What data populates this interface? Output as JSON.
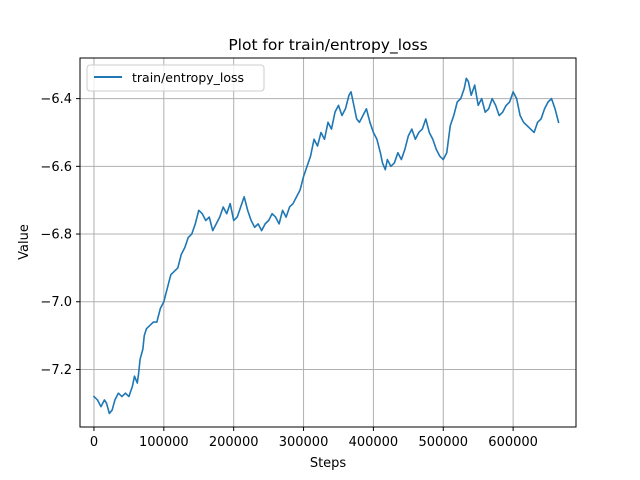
{
  "chart_data": {
    "type": "line",
    "title": "Plot for train/entropy_loss",
    "xlabel": "Steps",
    "ylabel": "Value",
    "xlim": [
      -20000,
      690000
    ],
    "ylim": [
      -7.37,
      -6.28
    ],
    "x_ticks": [
      0,
      100000,
      200000,
      300000,
      400000,
      500000,
      600000
    ],
    "x_tick_labels": [
      "0",
      "100000",
      "200000",
      "300000",
      "400000",
      "500000",
      "600000"
    ],
    "y_ticks": [
      -7.2,
      -7.0,
      -6.8,
      -6.6,
      -6.4
    ],
    "y_tick_labels": [
      "−7.2",
      "−7.0",
      "−6.8",
      "−6.6",
      "−6.4"
    ],
    "grid": true,
    "legend_position": "upper-left",
    "series": [
      {
        "name": "train/entropy_loss",
        "color": "#1f77b4",
        "points": [
          [
            0,
            -7.28
          ],
          [
            5000,
            -7.29
          ],
          [
            10000,
            -7.31
          ],
          [
            15000,
            -7.29
          ],
          [
            18000,
            -7.3
          ],
          [
            22000,
            -7.33
          ],
          [
            26000,
            -7.32
          ],
          [
            30000,
            -7.29
          ],
          [
            35000,
            -7.27
          ],
          [
            40000,
            -7.28
          ],
          [
            45000,
            -7.27
          ],
          [
            50000,
            -7.28
          ],
          [
            55000,
            -7.25
          ],
          [
            58000,
            -7.22
          ],
          [
            62000,
            -7.24
          ],
          [
            64000,
            -7.21
          ],
          [
            66000,
            -7.17
          ],
          [
            70000,
            -7.14
          ],
          [
            72000,
            -7.1
          ],
          [
            75000,
            -7.08
          ],
          [
            80000,
            -7.07
          ],
          [
            85000,
            -7.06
          ],
          [
            90000,
            -7.06
          ],
          [
            95000,
            -7.02
          ],
          [
            100000,
            -7.0
          ],
          [
            105000,
            -6.96
          ],
          [
            110000,
            -6.92
          ],
          [
            115000,
            -6.91
          ],
          [
            120000,
            -6.9
          ],
          [
            125000,
            -6.86
          ],
          [
            130000,
            -6.84
          ],
          [
            135000,
            -6.81
          ],
          [
            140000,
            -6.8
          ],
          [
            145000,
            -6.77
          ],
          [
            150000,
            -6.73
          ],
          [
            155000,
            -6.74
          ],
          [
            160000,
            -6.76
          ],
          [
            165000,
            -6.75
          ],
          [
            170000,
            -6.79
          ],
          [
            175000,
            -6.77
          ],
          [
            180000,
            -6.75
          ],
          [
            185000,
            -6.72
          ],
          [
            190000,
            -6.74
          ],
          [
            195000,
            -6.71
          ],
          [
            200000,
            -6.76
          ],
          [
            205000,
            -6.75
          ],
          [
            210000,
            -6.72
          ],
          [
            215000,
            -6.69
          ],
          [
            220000,
            -6.73
          ],
          [
            225000,
            -6.76
          ],
          [
            230000,
            -6.78
          ],
          [
            235000,
            -6.77
          ],
          [
            240000,
            -6.79
          ],
          [
            245000,
            -6.77
          ],
          [
            250000,
            -6.76
          ],
          [
            255000,
            -6.74
          ],
          [
            260000,
            -6.75
          ],
          [
            265000,
            -6.77
          ],
          [
            270000,
            -6.73
          ],
          [
            275000,
            -6.75
          ],
          [
            280000,
            -6.72
          ],
          [
            285000,
            -6.71
          ],
          [
            290000,
            -6.69
          ],
          [
            295000,
            -6.67
          ],
          [
            300000,
            -6.63
          ],
          [
            305000,
            -6.6
          ],
          [
            310000,
            -6.57
          ],
          [
            315000,
            -6.52
          ],
          [
            320000,
            -6.54
          ],
          [
            325000,
            -6.5
          ],
          [
            330000,
            -6.52
          ],
          [
            335000,
            -6.47
          ],
          [
            340000,
            -6.49
          ],
          [
            345000,
            -6.44
          ],
          [
            350000,
            -6.42
          ],
          [
            355000,
            -6.45
          ],
          [
            360000,
            -6.43
          ],
          [
            365000,
            -6.39
          ],
          [
            368000,
            -6.38
          ],
          [
            372000,
            -6.42
          ],
          [
            376000,
            -6.46
          ],
          [
            380000,
            -6.47
          ],
          [
            385000,
            -6.45
          ],
          [
            390000,
            -6.43
          ],
          [
            395000,
            -6.47
          ],
          [
            400000,
            -6.5
          ],
          [
            405000,
            -6.52
          ],
          [
            410000,
            -6.56
          ],
          [
            413000,
            -6.59
          ],
          [
            417000,
            -6.61
          ],
          [
            420000,
            -6.58
          ],
          [
            425000,
            -6.6
          ],
          [
            430000,
            -6.59
          ],
          [
            435000,
            -6.56
          ],
          [
            440000,
            -6.58
          ],
          [
            445000,
            -6.55
          ],
          [
            450000,
            -6.51
          ],
          [
            455000,
            -6.49
          ],
          [
            460000,
            -6.52
          ],
          [
            465000,
            -6.5
          ],
          [
            470000,
            -6.49
          ],
          [
            475000,
            -6.46
          ],
          [
            480000,
            -6.5
          ],
          [
            485000,
            -6.52
          ],
          [
            490000,
            -6.55
          ],
          [
            495000,
            -6.57
          ],
          [
            500000,
            -6.58
          ],
          [
            505000,
            -6.56
          ],
          [
            510000,
            -6.48
          ],
          [
            515000,
            -6.45
          ],
          [
            520000,
            -6.41
          ],
          [
            525000,
            -6.4
          ],
          [
            530000,
            -6.37
          ],
          [
            533000,
            -6.34
          ],
          [
            536000,
            -6.35
          ],
          [
            540000,
            -6.39
          ],
          [
            545000,
            -6.36
          ],
          [
            550000,
            -6.42
          ],
          [
            555000,
            -6.4
          ],
          [
            560000,
            -6.44
          ],
          [
            565000,
            -6.43
          ],
          [
            570000,
            -6.4
          ],
          [
            575000,
            -6.42
          ],
          [
            580000,
            -6.45
          ],
          [
            585000,
            -6.44
          ],
          [
            590000,
            -6.42
          ],
          [
            595000,
            -6.41
          ],
          [
            600000,
            -6.38
          ],
          [
            605000,
            -6.4
          ],
          [
            610000,
            -6.45
          ],
          [
            615000,
            -6.47
          ],
          [
            620000,
            -6.48
          ],
          [
            625000,
            -6.49
          ],
          [
            630000,
            -6.5
          ],
          [
            635000,
            -6.47
          ],
          [
            640000,
            -6.46
          ],
          [
            645000,
            -6.43
          ],
          [
            650000,
            -6.41
          ],
          [
            655000,
            -6.4
          ],
          [
            660000,
            -6.43
          ],
          [
            665000,
            -6.47
          ]
        ]
      }
    ]
  }
}
